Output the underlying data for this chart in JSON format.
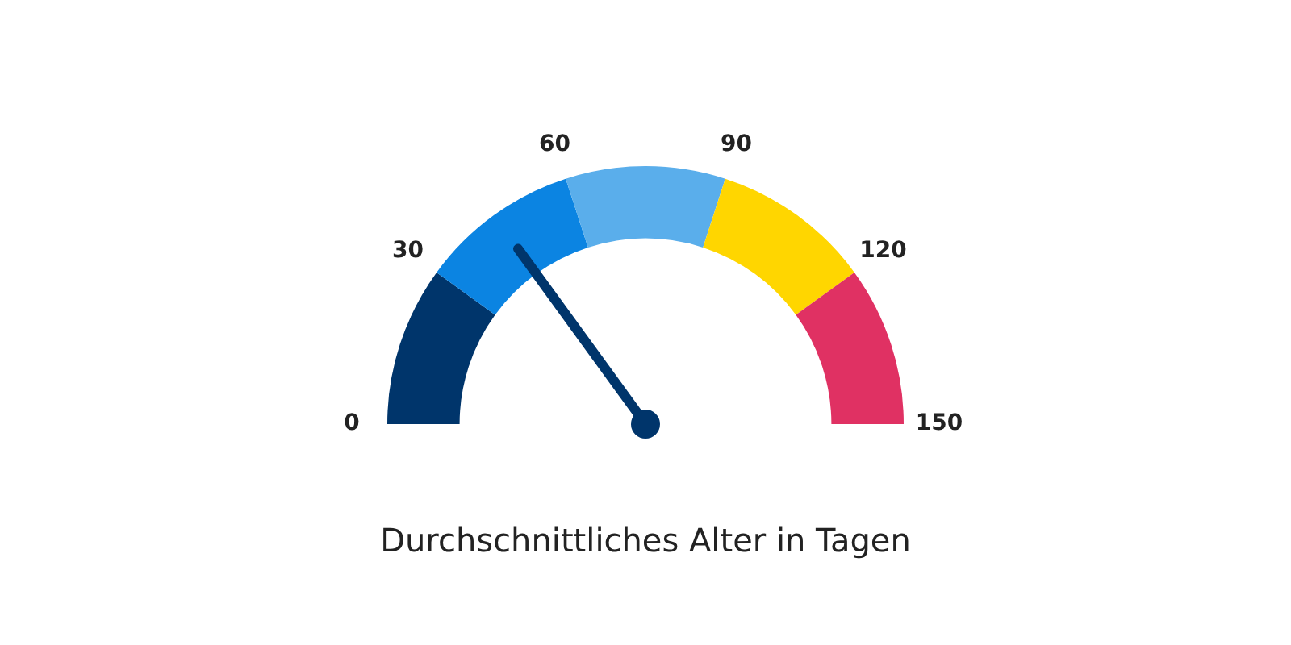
{
  "chart_data": {
    "type": "donut",
    "title": "Durchschnittliches Alter in Tagen",
    "categories": [
      "0",
      "30",
      "60",
      "90",
      "120"
    ],
    "values": [
      20,
      20,
      20,
      20,
      20
    ],
    "colors": [
      "#00356b",
      "#0b84e2",
      "#5aaeeb",
      "#ffd600",
      "#e03163"
    ],
    "annotations": [
      "150"
    ],
    "needle": "30",
    "legend": false
  }
}
